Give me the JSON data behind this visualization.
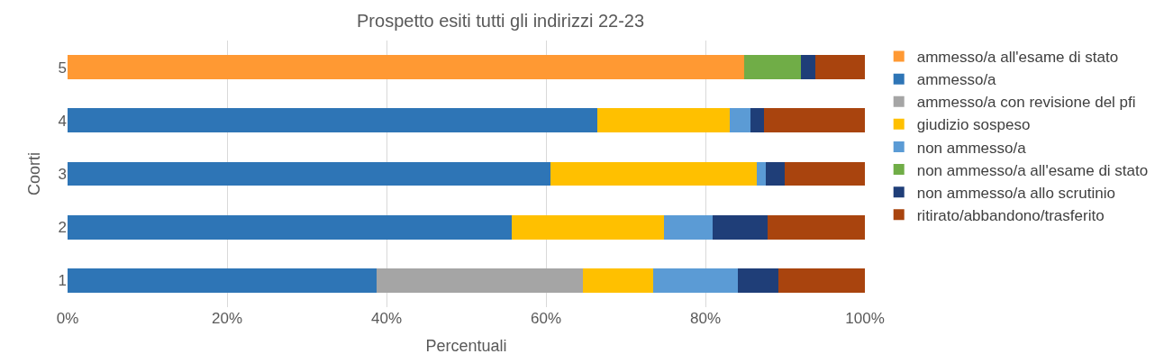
{
  "chart_data": {
    "type": "bar",
    "orientation": "horizontal",
    "stacked": true,
    "title": "Prospetto esiti tutti gli indirizzi 22-23",
    "xlabel": "Percentuali",
    "ylabel": "Coorti",
    "categories": [
      "5",
      "4",
      "3",
      "2",
      "1"
    ],
    "series": [
      {
        "name": "ammesso/a all'esame di stato",
        "color": "#ff9933",
        "values": [
          84.9,
          null,
          null,
          null,
          null
        ]
      },
      {
        "name": "ammesso/a",
        "color": "#2e75b6",
        "values": [
          null,
          66.4,
          60.6,
          55.7,
          38.8
        ]
      },
      {
        "name": "ammesso/a con revisione del pfi",
        "color": "#a5a5a5",
        "values": [
          null,
          null,
          null,
          null,
          25.8
        ]
      },
      {
        "name": "giudizio sospeso",
        "color": "#ffc000",
        "values": [
          null,
          16.7,
          25.8,
          19.1,
          8.8
        ]
      },
      {
        "name": "non ammesso/a",
        "color": "#5b9bd5",
        "values": [
          null,
          2.6,
          1.2,
          6.1,
          10.7
        ]
      },
      {
        "name": "non ammesso/a all'esame di stato",
        "color": "#70ad47",
        "values": [
          7.1,
          null,
          null,
          null,
          null
        ]
      },
      {
        "name": "non ammesso/a allo scrutinio",
        "color": "#1f3e78",
        "values": [
          1.8,
          1.7,
          2.3,
          6.9,
          5.1
        ]
      },
      {
        "name": "ritirato/abbandono/trasferito",
        "color": "#a9440e",
        "values": [
          6.2,
          12.6,
          10.1,
          12.2,
          10.8
        ]
      }
    ],
    "xlim": [
      0,
      100
    ],
    "xticks": [
      {
        "value": 0,
        "label": "0%"
      },
      {
        "value": 20,
        "label": "20%"
      },
      {
        "value": 40,
        "label": "40%"
      },
      {
        "value": 60,
        "label": "60%"
      },
      {
        "value": 80,
        "label": "80%"
      },
      {
        "value": 100,
        "label": "100%"
      }
    ],
    "grid": "x",
    "legend": "right"
  }
}
